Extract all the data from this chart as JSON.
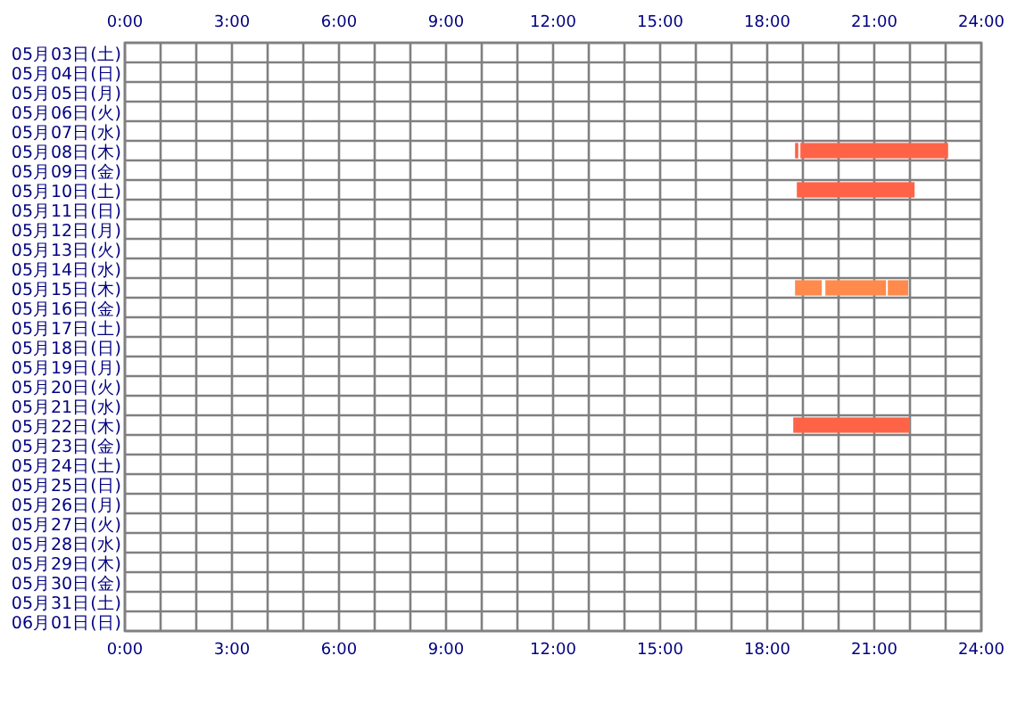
{
  "chart_data": {
    "type": "bar",
    "orientation": "horizontal",
    "grid": true,
    "categories": [
      "05月03日(土)",
      "05月04日(日)",
      "05月05日(月)",
      "05月06日(火)",
      "05月07日(水)",
      "05月08日(木)",
      "05月09日(金)",
      "05月10日(土)",
      "05月11日(日)",
      "05月12日(月)",
      "05月13日(火)",
      "05月14日(水)",
      "05月15日(木)",
      "05月16日(金)",
      "05月17日(土)",
      "05月18日(日)",
      "05月19日(月)",
      "05月20日(火)",
      "05月21日(水)",
      "05月22日(木)",
      "05月23日(金)",
      "05月24日(土)",
      "05月25日(日)",
      "05月26日(月)",
      "05月27日(火)",
      "05月28日(水)",
      "05月29日(木)",
      "05月30日(金)",
      "05月31日(土)",
      "06月01日(日)"
    ],
    "series": [
      {
        "color": "#ff6347",
        "values": [
          null,
          null,
          null,
          null,
          null,
          0.09,
          null,
          3.3,
          null,
          null,
          null,
          null,
          null,
          null,
          null,
          null,
          null,
          null,
          null,
          3.27,
          null,
          null,
          null,
          null,
          null,
          null,
          null,
          null,
          null,
          null
        ],
        "base": [
          null,
          null,
          null,
          null,
          null,
          18.78,
          null,
          18.83,
          null,
          null,
          null,
          null,
          null,
          null,
          null,
          null,
          null,
          null,
          null,
          18.73,
          null,
          null,
          null,
          null,
          null,
          null,
          null,
          null,
          null,
          null
        ]
      },
      {
        "color": "#ff6347",
        "values": [
          null,
          null,
          null,
          null,
          null,
          4.14,
          null,
          null,
          null,
          null,
          null,
          null,
          null,
          null,
          null,
          null,
          null,
          null,
          null,
          null,
          null,
          null,
          null,
          null,
          null,
          null,
          null,
          null,
          null,
          null
        ],
        "base": [
          null,
          null,
          null,
          null,
          null,
          18.93,
          null,
          null,
          null,
          null,
          null,
          null,
          null,
          null,
          null,
          null,
          null,
          null,
          null,
          null,
          null,
          null,
          null,
          null,
          null,
          null,
          null,
          null,
          null,
          null
        ]
      },
      {
        "color": "#ff8a4c",
        "values": [
          null,
          null,
          null,
          null,
          null,
          null,
          null,
          null,
          null,
          null,
          null,
          null,
          0.75,
          null,
          null,
          null,
          null,
          null,
          null,
          null,
          null,
          null,
          null,
          null,
          null,
          null,
          null,
          null,
          null,
          null
        ],
        "base": [
          null,
          null,
          null,
          null,
          null,
          null,
          null,
          null,
          null,
          null,
          null,
          null,
          18.78,
          null,
          null,
          null,
          null,
          null,
          null,
          null,
          null,
          null,
          null,
          null,
          null,
          null,
          null,
          null,
          null,
          null
        ]
      },
      {
        "color": "#ff8a4c",
        "values": [
          null,
          null,
          null,
          null,
          null,
          null,
          null,
          null,
          null,
          null,
          null,
          null,
          1.7,
          null,
          null,
          null,
          null,
          null,
          null,
          null,
          null,
          null,
          null,
          null,
          null,
          null,
          null,
          null,
          null,
          null
        ],
        "base": [
          null,
          null,
          null,
          null,
          null,
          null,
          null,
          null,
          null,
          null,
          null,
          null,
          19.63,
          null,
          null,
          null,
          null,
          null,
          null,
          null,
          null,
          null,
          null,
          null,
          null,
          null,
          null,
          null,
          null,
          null
        ]
      },
      {
        "color": "#ff8a4c",
        "values": [
          null,
          null,
          null,
          null,
          null,
          null,
          null,
          null,
          null,
          null,
          null,
          null,
          0.57,
          null,
          null,
          null,
          null,
          null,
          null,
          null,
          null,
          null,
          null,
          null,
          null,
          null,
          null,
          null,
          null,
          null
        ],
        "base": [
          null,
          null,
          null,
          null,
          null,
          null,
          null,
          null,
          null,
          null,
          null,
          null,
          21.38,
          null,
          null,
          null,
          null,
          null,
          null,
          null,
          null,
          null,
          null,
          null,
          null,
          null,
          null,
          null,
          null,
          null
        ]
      }
    ],
    "xlim": [
      0,
      24
    ],
    "xticks": [
      {
        "value": 0,
        "label": "0:00"
      },
      {
        "value": 1,
        "label": null
      },
      {
        "value": 2,
        "label": null
      },
      {
        "value": 3,
        "label": "3:00"
      },
      {
        "value": 4,
        "label": null
      },
      {
        "value": 5,
        "label": null
      },
      {
        "value": 6,
        "label": "6:00"
      },
      {
        "value": 7,
        "label": null
      },
      {
        "value": 8,
        "label": null
      },
      {
        "value": 9,
        "label": "9:00"
      },
      {
        "value": 10,
        "label": null
      },
      {
        "value": 11,
        "label": null
      },
      {
        "value": 12,
        "label": "12:00"
      },
      {
        "value": 13,
        "label": null
      },
      {
        "value": 14,
        "label": null
      },
      {
        "value": 15,
        "label": "15:00"
      },
      {
        "value": 16,
        "label": null
      },
      {
        "value": 17,
        "label": null
      },
      {
        "value": 18,
        "label": "18:00"
      },
      {
        "value": 19,
        "label": null
      },
      {
        "value": 20,
        "label": null
      },
      {
        "value": 21,
        "label": "21:00"
      },
      {
        "value": 22,
        "label": null
      },
      {
        "value": 23,
        "label": null
      },
      {
        "value": 24,
        "label": "24:00"
      }
    ],
    "x2lim": [
      0,
      24
    ],
    "x2ticks": [
      {
        "value": 0,
        "label": "0:00"
      },
      {
        "value": 3,
        "label": "3:00"
      },
      {
        "value": 6,
        "label": "6:00"
      },
      {
        "value": 9,
        "label": "9:00"
      },
      {
        "value": 12,
        "label": "12:00"
      },
      {
        "value": 15,
        "label": "15:00"
      },
      {
        "value": 18,
        "label": "18:00"
      },
      {
        "value": 21,
        "label": "21:00"
      },
      {
        "value": 24,
        "label": "24:00"
      }
    ]
  }
}
